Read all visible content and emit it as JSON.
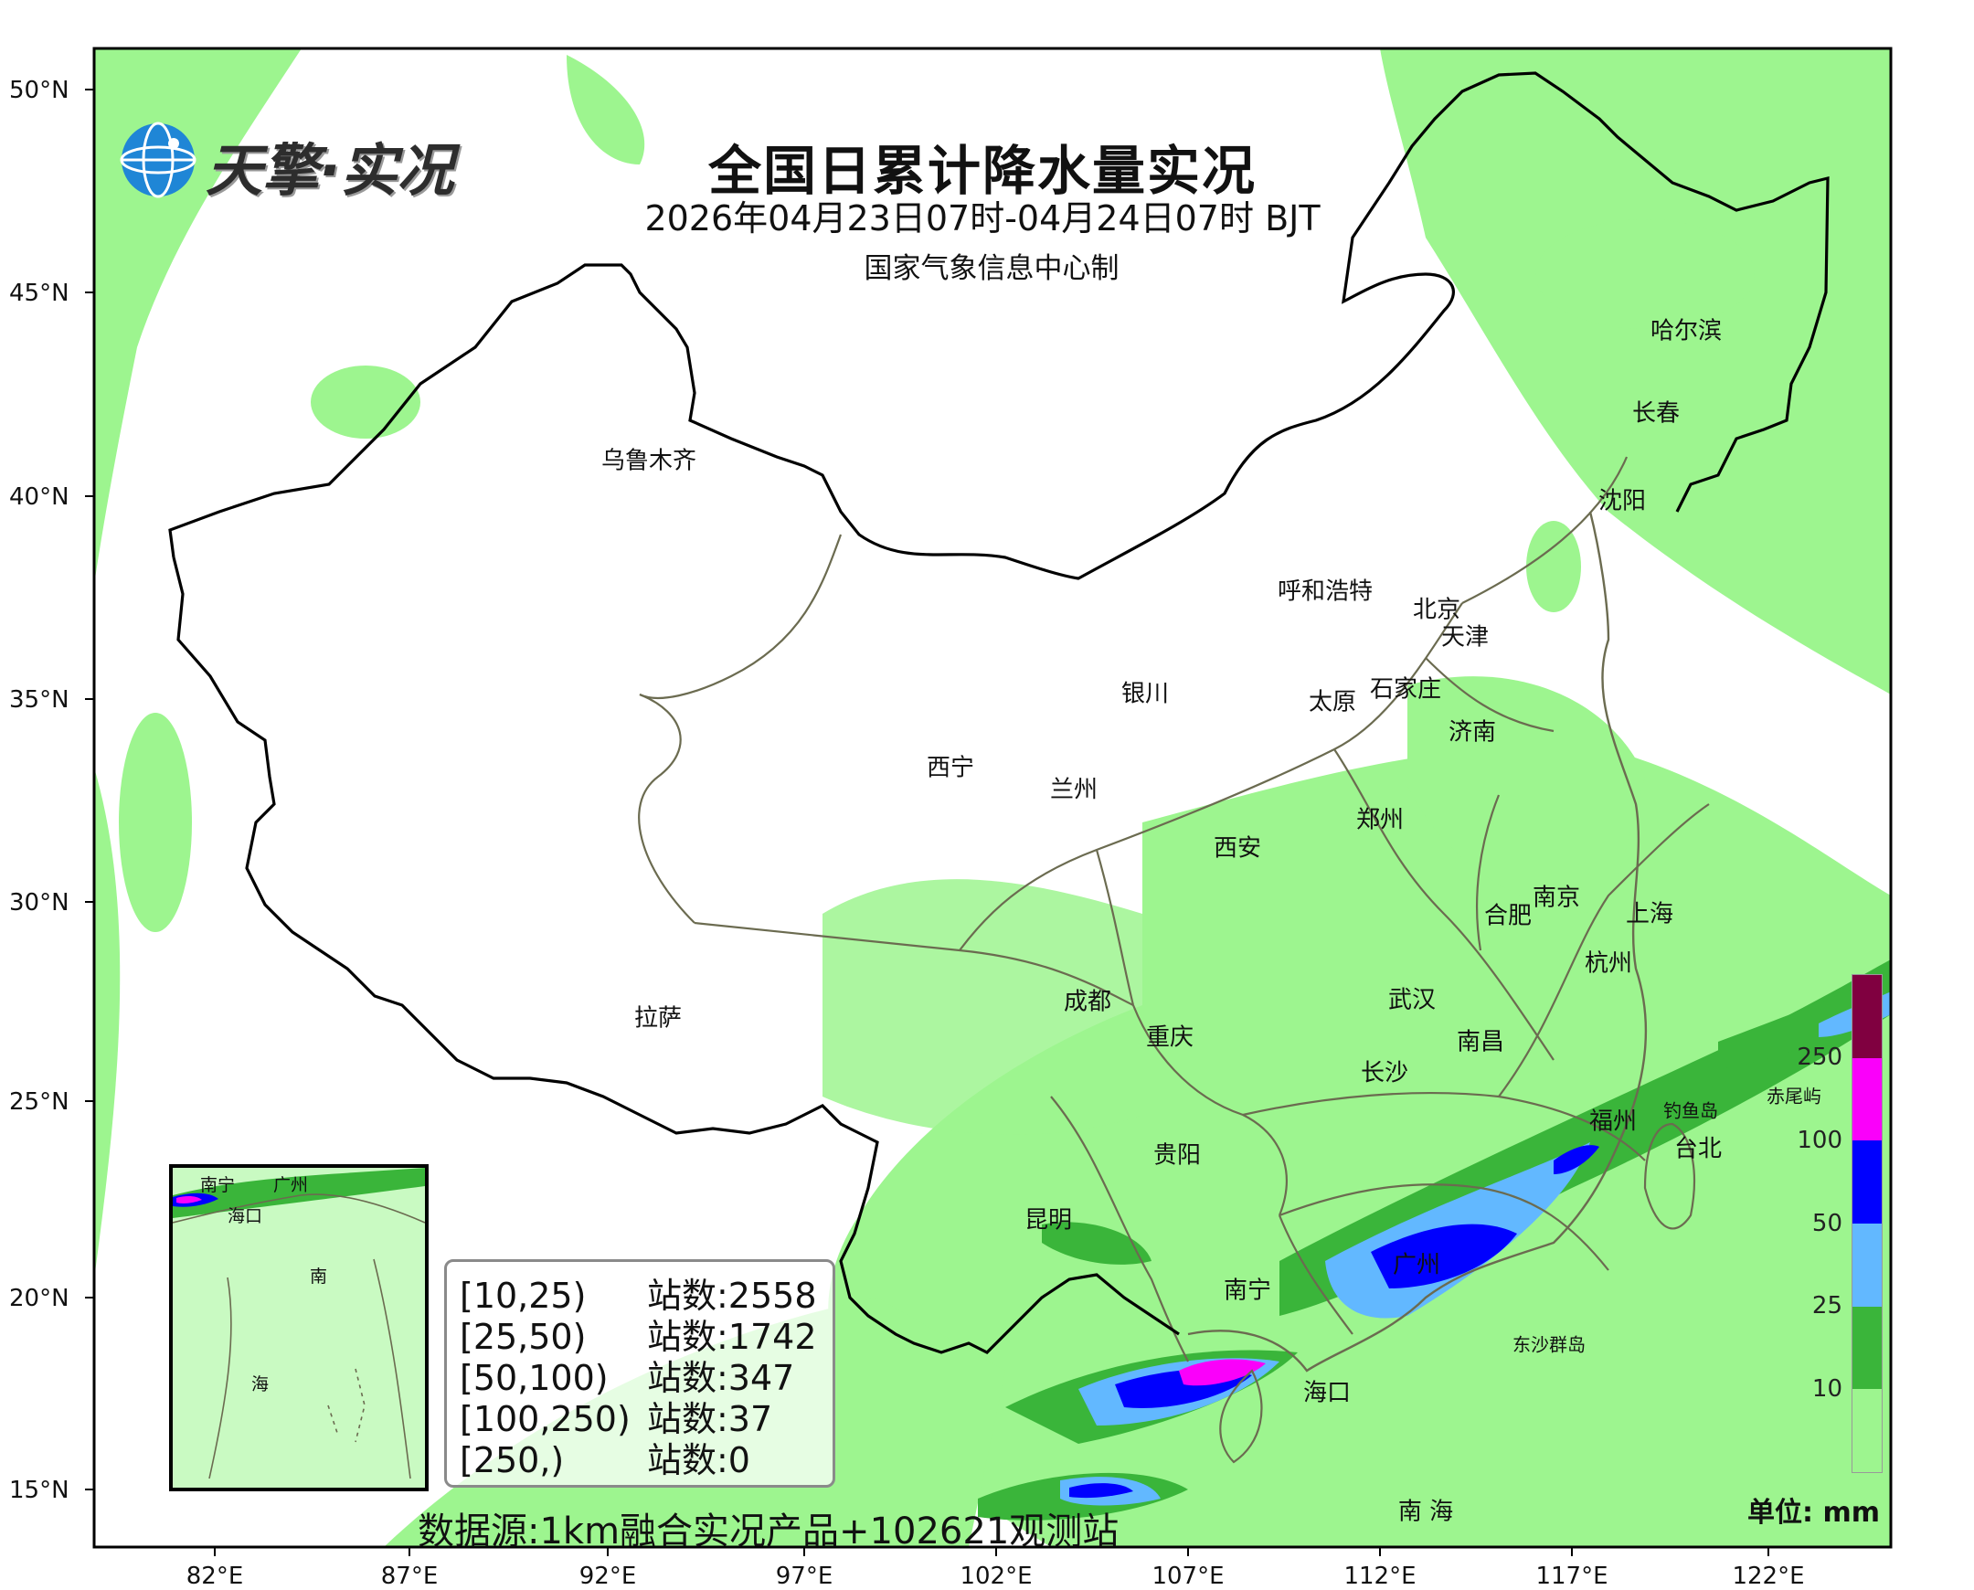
{
  "header": {
    "logo_text": "天擎·实况",
    "title": "全国日累计降水量实况",
    "subtitle": "2026年04月23日07时-04月24日07时 BJT",
    "producer": "国家气象信息中心制"
  },
  "axes": {
    "lat_labels": [
      "50°N",
      "45°N",
      "40°N",
      "35°N",
      "30°N",
      "25°N",
      "20°N",
      "15°N"
    ],
    "lon_labels": [
      "82°E",
      "87°E",
      "92°E",
      "97°E",
      "102°E",
      "107°E",
      "112°E",
      "117°E",
      "122°E"
    ]
  },
  "cities": {
    "urumqi": "乌鲁木齐",
    "harbin": "哈尔滨",
    "changchun": "长春",
    "shenyang": "沈阳",
    "hohhot": "呼和浩特",
    "beijing": "北京",
    "tianjin": "天津",
    "yinchuan": "银川",
    "taiyuan": "太原",
    "shijiazhuang": "石家庄",
    "jinan": "济南",
    "xining": "西宁",
    "lanzhou": "兰州",
    "zhengzhou": "郑州",
    "xian": "西安",
    "nanjing": "南京",
    "shanghai": "上海",
    "hefei": "合肥",
    "hangzhou": "杭州",
    "lhasa": "拉萨",
    "chengdu": "成都",
    "wuhan": "武汉",
    "chongqing": "重庆",
    "nanchang": "南昌",
    "changsha": "长沙",
    "fuzhou": "福州",
    "diaoyudao": "钓鱼岛",
    "chiweiyu": "赤尾屿",
    "taipei": "台北",
    "guiyang": "贵阳",
    "kunming": "昆明",
    "guangzhou": "广州",
    "nanning": "南宁",
    "dongsha": "东沙群岛",
    "haikou": "海口",
    "nanhai": "南 海"
  },
  "inset": {
    "nanning": "南宁",
    "guangzhou": "广州",
    "haikou": "海口",
    "nan": "南",
    "hai": "海"
  },
  "legend": {
    "rows": [
      {
        "range": "[10,25)",
        "label": "站数:2558"
      },
      {
        "range": "[25,50)",
        "label": "站数:1742"
      },
      {
        "range": "[50,100)",
        "label": "站数:347"
      },
      {
        "range": "[100,250)",
        "label": "站数:37"
      },
      {
        "range": "[250,)",
        "label": "站数:0"
      }
    ]
  },
  "source": "数据源:1km融合实况产品+102621观测站",
  "colorbar": {
    "unit": "单位: mm",
    "ticks": [
      "10",
      "25",
      "50",
      "100",
      "250"
    ],
    "colors": [
      "#9df58f",
      "#3ab53a",
      "#62b8ff",
      "#0000fe",
      "#fa00fa",
      "#800040"
    ]
  }
}
